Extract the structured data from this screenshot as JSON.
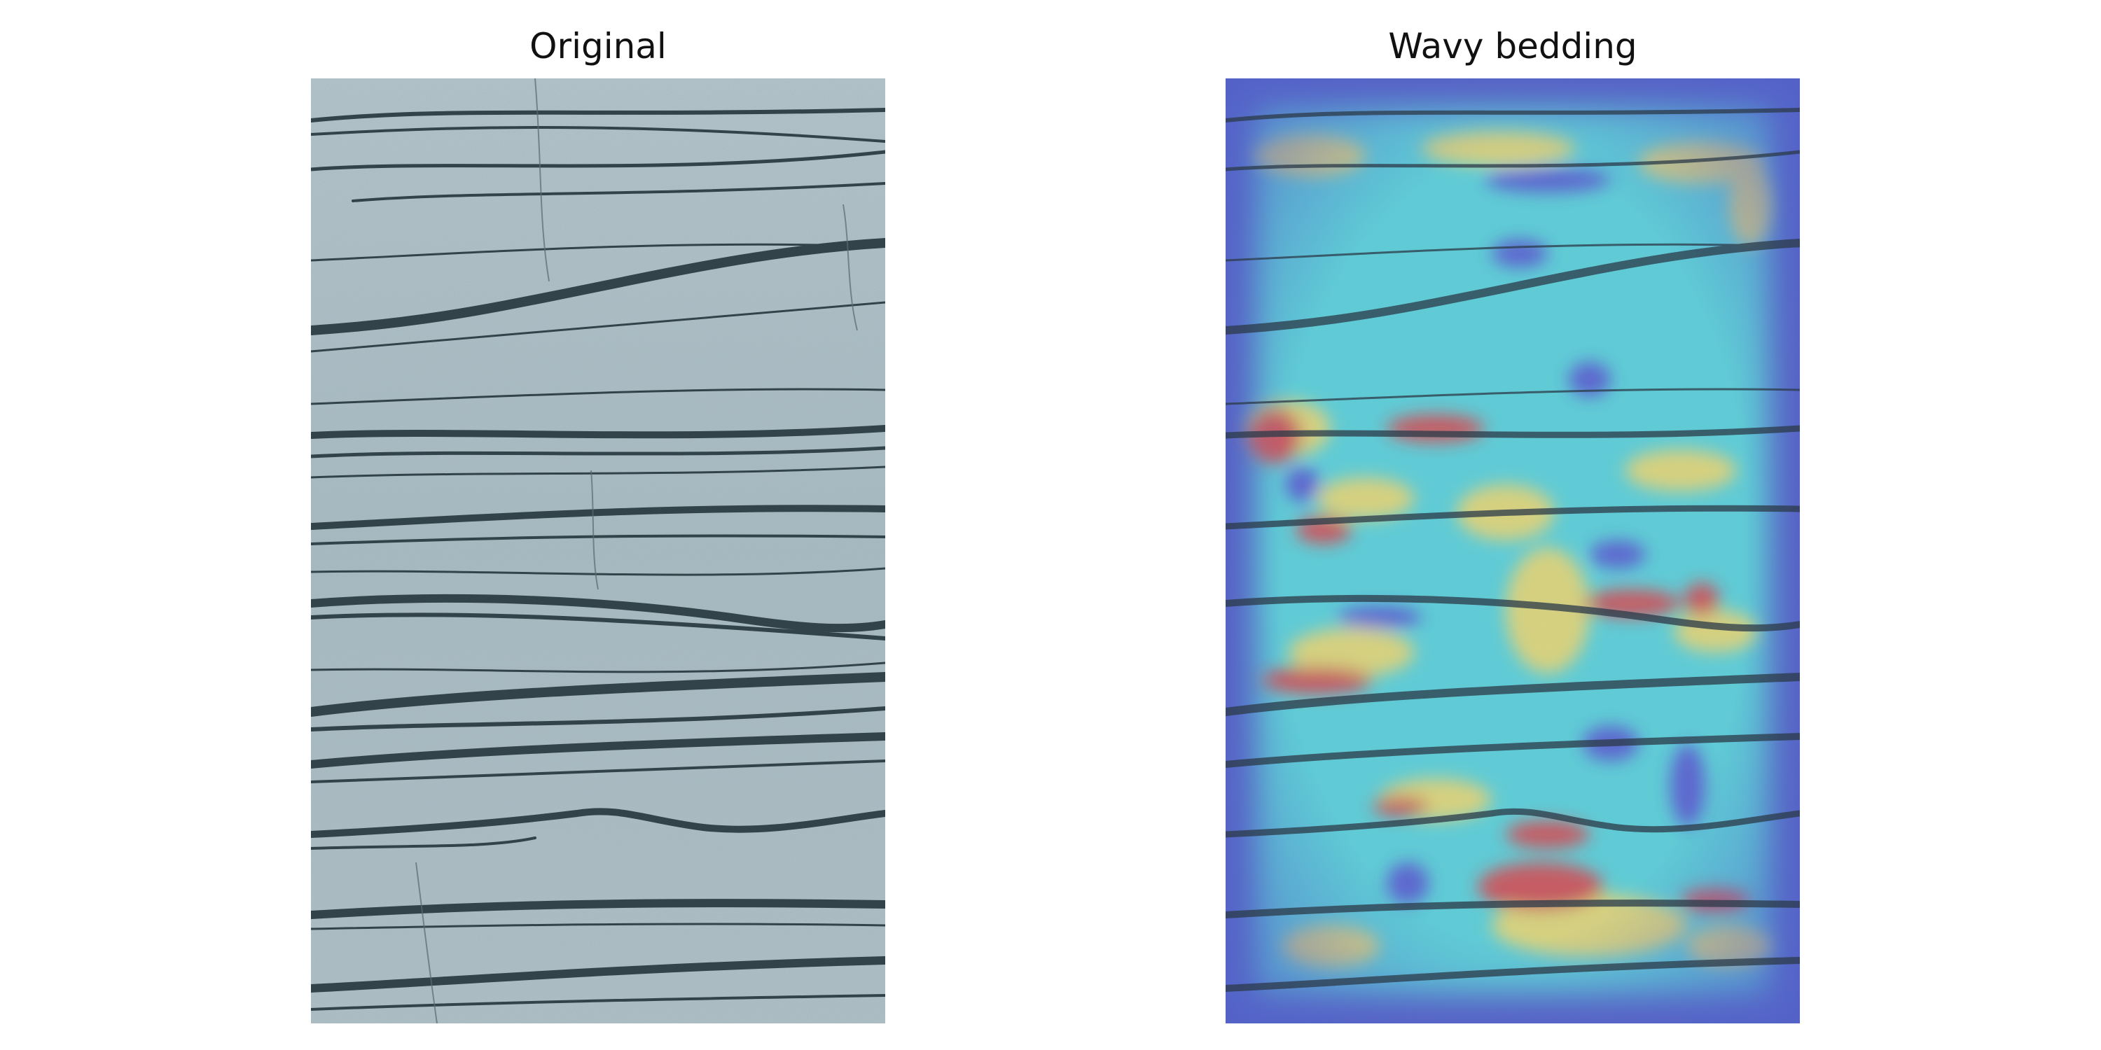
{
  "panels": {
    "left": {
      "title": "Original"
    },
    "right": {
      "title": "Wavy bedding"
    }
  },
  "colors": {
    "background": "#ffffff",
    "rock_base": "#a9bcc4",
    "rock_light": "#bccbd2",
    "mud_drape": "#33434a",
    "heat_low": "#1f2fd0",
    "heat_mid": "#33d6e6",
    "heat_high_yellow": "#f2e05a",
    "heat_peak_red": "#d8282e"
  }
}
